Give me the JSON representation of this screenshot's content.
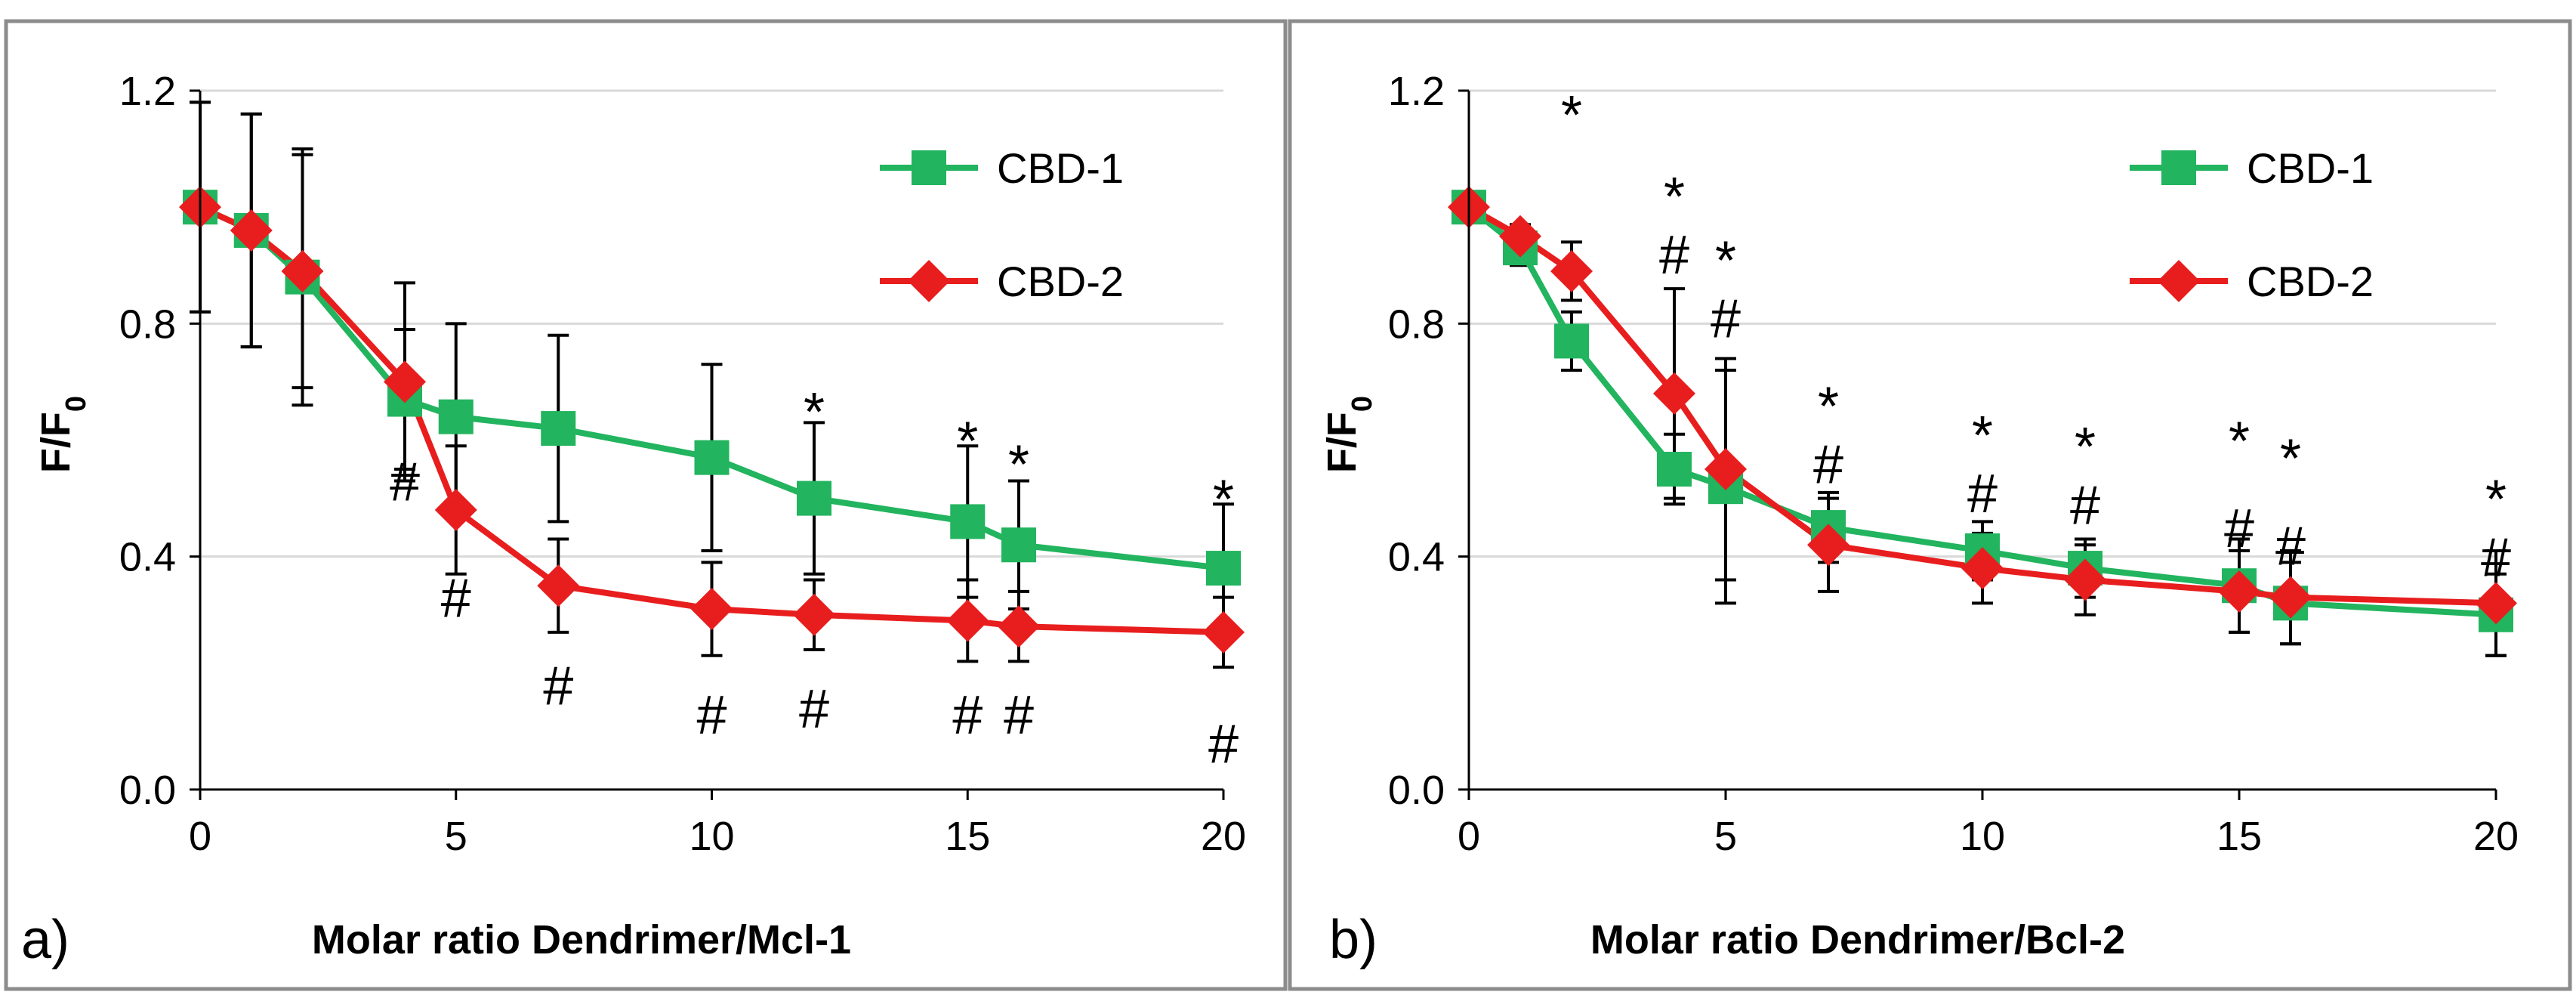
{
  "chart_data": [
    {
      "type": "line",
      "panel_label": "a)",
      "xlabel": "Molar ratio Dendrimer/Mcl-1",
      "ylabel_main": "F/F",
      "ylabel_sub": "0",
      "xlim": [
        0,
        20
      ],
      "ylim": [
        0,
        1.2
      ],
      "xticks": [
        "0",
        "5",
        "10",
        "15",
        "20"
      ],
      "yticks": [
        "0.0",
        "0.4",
        "0.8",
        "1.2"
      ],
      "legend_position": "top-right",
      "series": [
        {
          "name": "CBD-1",
          "color": "#22b45e",
          "marker": "square",
          "x": [
            0,
            1,
            2,
            4,
            5,
            7,
            10,
            12,
            15,
            16,
            20
          ],
          "y": [
            1.0,
            0.96,
            0.88,
            0.67,
            0.64,
            0.62,
            0.57,
            0.5,
            0.46,
            0.42,
            0.38
          ],
          "err": [
            0.18,
            0.2,
            0.22,
            0.12,
            0.16,
            0.16,
            0.16,
            0.13,
            0.13,
            0.11,
            0.11
          ]
        },
        {
          "name": "CBD-2",
          "color": "#e81e1e",
          "marker": "diamond",
          "x": [
            0,
            1,
            2,
            4,
            5,
            7,
            10,
            12,
            15,
            16,
            20
          ],
          "y": [
            1.0,
            0.96,
            0.89,
            0.7,
            0.48,
            0.35,
            0.31,
            0.3,
            0.29,
            0.28,
            0.27
          ],
          "err": [
            0.18,
            0.2,
            0.2,
            0.17,
            0.11,
            0.08,
            0.08,
            0.06,
            0.07,
            0.06,
            0.06
          ]
        }
      ],
      "annotations": [
        {
          "x": 4,
          "y": 0.53,
          "text": "#"
        },
        {
          "x": 5,
          "y": 0.33,
          "text": "#"
        },
        {
          "x": 7,
          "y": 0.18,
          "text": "#"
        },
        {
          "x": 10,
          "y": 0.13,
          "text": "#"
        },
        {
          "x": 12,
          "y": 0.14,
          "text": "#"
        },
        {
          "x": 12,
          "y": 0.65,
          "text": "*"
        },
        {
          "x": 15,
          "y": 0.13,
          "text": "#"
        },
        {
          "x": 15,
          "y": 0.6,
          "text": "*"
        },
        {
          "x": 16,
          "y": 0.13,
          "text": "#"
        },
        {
          "x": 16,
          "y": 0.56,
          "text": "*"
        },
        {
          "x": 20,
          "y": 0.08,
          "text": "#"
        },
        {
          "x": 20,
          "y": 0.5,
          "text": "*"
        }
      ]
    },
    {
      "type": "line",
      "panel_label": "b)",
      "xlabel": "Molar ratio Dendrimer/Bcl-2",
      "ylabel_main": "F/F",
      "ylabel_sub": "0",
      "xlim": [
        0,
        20
      ],
      "ylim": [
        0,
        1.2
      ],
      "xticks": [
        "0",
        "5",
        "10",
        "15",
        "20"
      ],
      "yticks": [
        "0.0",
        "0.4",
        "0.8",
        "1.2"
      ],
      "legend_position": "top-right",
      "series": [
        {
          "name": "CBD-1",
          "color": "#22b45e",
          "marker": "square",
          "x": [
            0,
            1,
            2,
            4,
            5,
            7,
            10,
            12,
            15,
            16,
            20
          ],
          "y": [
            1.0,
            0.93,
            0.77,
            0.55,
            0.52,
            0.45,
            0.41,
            0.38,
            0.35,
            0.32,
            0.3
          ],
          "err": [
            0.02,
            0.03,
            0.05,
            0.06,
            0.2,
            0.06,
            0.05,
            0.05,
            0.08,
            0.07,
            0.07
          ]
        },
        {
          "name": "CBD-2",
          "color": "#e81e1e",
          "marker": "diamond",
          "x": [
            0,
            1,
            2,
            4,
            5,
            7,
            10,
            12,
            15,
            16,
            20
          ],
          "y": [
            1.0,
            0.95,
            0.89,
            0.68,
            0.55,
            0.42,
            0.38,
            0.36,
            0.34,
            0.33,
            0.32
          ],
          "err": [
            0.02,
            0.02,
            0.05,
            0.18,
            0.19,
            0.08,
            0.06,
            0.06,
            0.07,
            0.08,
            0.09
          ]
        }
      ],
      "annotations": [
        {
          "x": 2,
          "y": 1.16,
          "text": "*"
        },
        {
          "x": 4,
          "y": 0.92,
          "text": "#"
        },
        {
          "x": 4,
          "y": 1.02,
          "text": "*"
        },
        {
          "x": 5,
          "y": 0.81,
          "text": "#"
        },
        {
          "x": 5,
          "y": 0.91,
          "text": "*"
        },
        {
          "x": 7,
          "y": 0.56,
          "text": "#"
        },
        {
          "x": 7,
          "y": 0.66,
          "text": "*"
        },
        {
          "x": 10,
          "y": 0.51,
          "text": "#"
        },
        {
          "x": 10,
          "y": 0.61,
          "text": "*"
        },
        {
          "x": 12,
          "y": 0.49,
          "text": "#"
        },
        {
          "x": 12,
          "y": 0.59,
          "text": "*"
        },
        {
          "x": 15,
          "y": 0.45,
          "text": "#"
        },
        {
          "x": 15,
          "y": 0.6,
          "text": "*"
        },
        {
          "x": 16,
          "y": 0.42,
          "text": "#"
        },
        {
          "x": 16,
          "y": 0.57,
          "text": "*"
        },
        {
          "x": 20,
          "y": 0.4,
          "text": "#"
        },
        {
          "x": 20,
          "y": 0.5,
          "text": "*"
        }
      ]
    }
  ]
}
